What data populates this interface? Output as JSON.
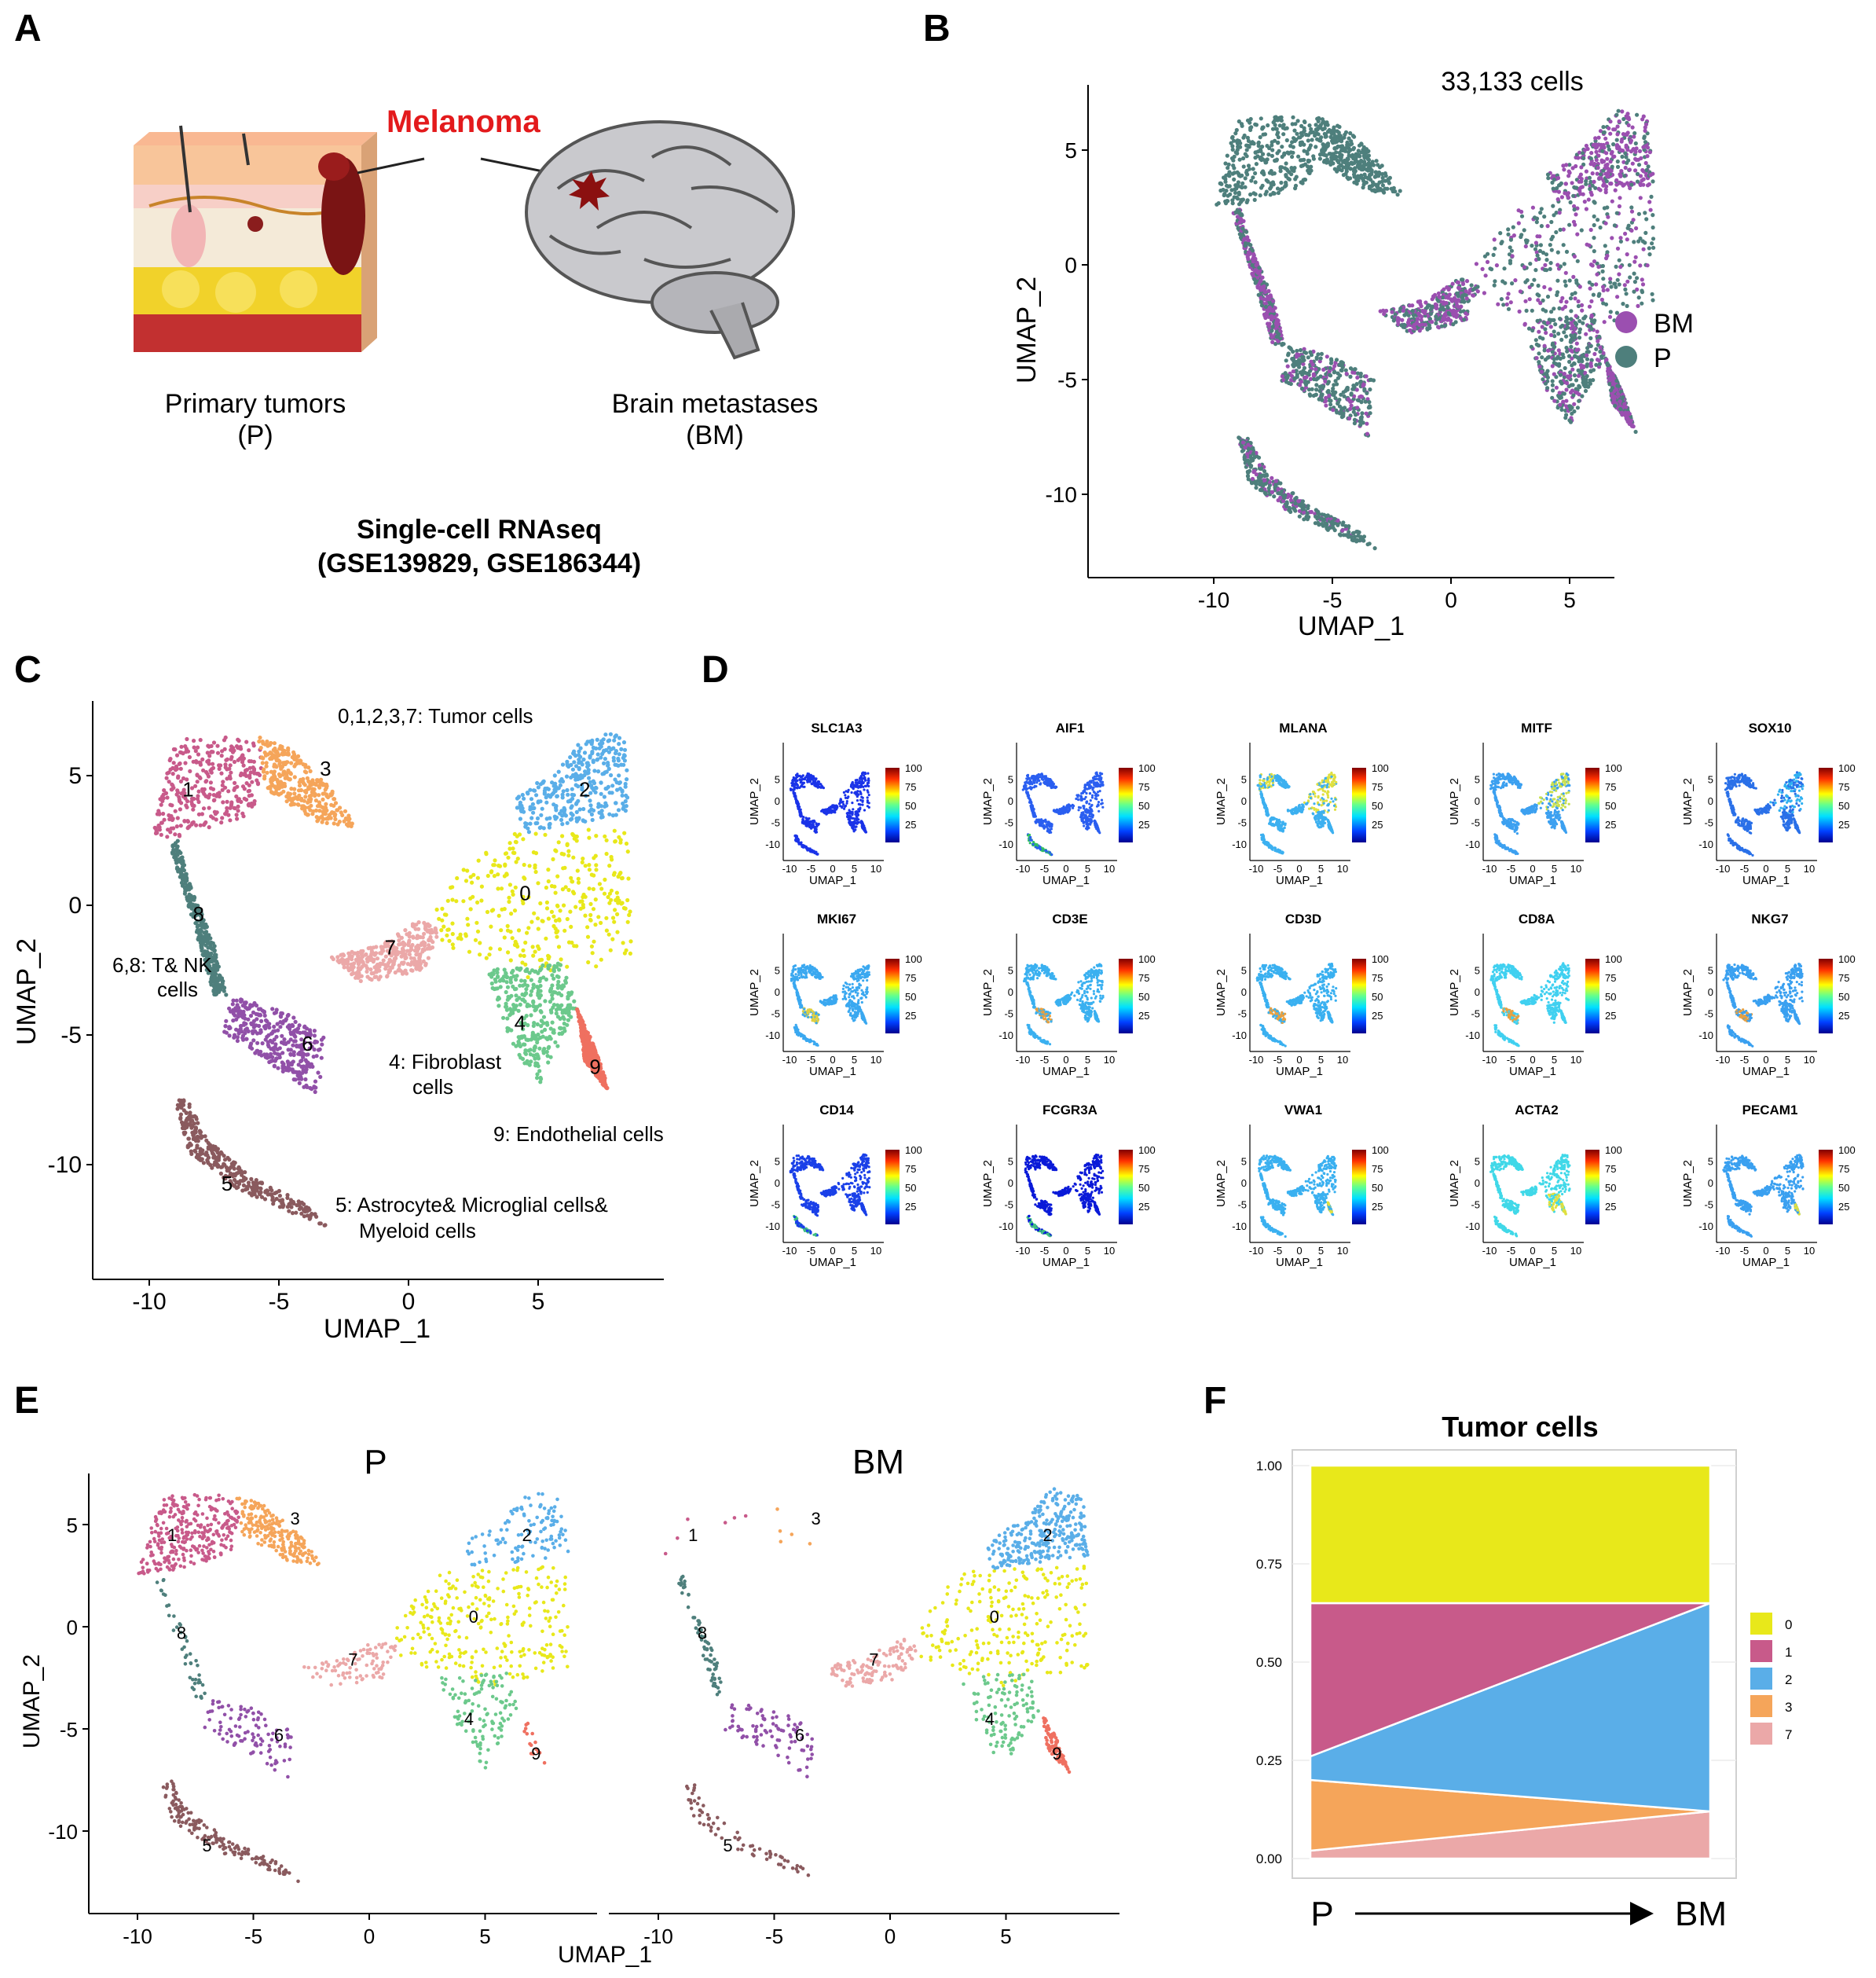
{
  "panels": {
    "A": {
      "label": "A",
      "melanoma": "Melanoma",
      "primary_line1": "Primary tumors",
      "primary_line2": "(P)",
      "brain_line1": "Brain metastases",
      "brain_line2": "(BM)",
      "method_line1": "Single-cell RNAseq",
      "method_line2": "(GSE139829, GSE186344)"
    },
    "B": {
      "label": "B",
      "cell_count": "33,133 cells",
      "xlabel": "UMAP_1",
      "ylabel": "UMAP_2",
      "legend": [
        {
          "label": "BM",
          "color": "#9b4fb0"
        },
        {
          "label": "P",
          "color": "#4e7f7c"
        }
      ]
    },
    "C": {
      "label": "C",
      "xlabel": "UMAP_1",
      "ylabel": "UMAP_2",
      "annot_tumor": "0,1,2,3,7: Tumor cells",
      "annot_tnk_1": "6,8: T& NK",
      "annot_tnk_2": "cells",
      "annot_fib_1": "4: Fibroblast",
      "annot_fib_2": "cells",
      "annot_endo": "9: Endothelial cells",
      "annot_astro_1": "5: Astrocyte& Microglial cells&",
      "annot_astro_2": "Myeloid cells"
    },
    "D": {
      "label": "D",
      "xlabel": "UMAP_1",
      "ylabel": "UMAP_2",
      "colorbar_ticks": [
        "100",
        "75",
        "50",
        "25"
      ],
      "x_ticks": [
        "-10",
        "-5",
        "0",
        "5",
        "10"
      ],
      "y_ticks": [
        "5",
        "0",
        "-5",
        "-10"
      ],
      "genes": [
        "SLC1A3",
        "AIF1",
        "MLANA",
        "MITF",
        "SOX10",
        "MKI67",
        "CD3E",
        "CD3D",
        "CD8A",
        "NKG7",
        "CD14",
        "FCGR3A",
        "VWA1",
        "ACTA2",
        "PECAM1"
      ]
    },
    "E": {
      "label": "E",
      "title_left": "P",
      "title_right": "BM",
      "xlabel": "UMAP_1",
      "ylabel": "UMAP_2"
    },
    "F": {
      "label": "F",
      "title": "Tumor cells",
      "x_start": "P",
      "x_end": "BM"
    }
  },
  "umap_axes": {
    "x_ticks": [
      "-10",
      "-5",
      "0",
      "5"
    ],
    "y_ticks": [
      "5",
      "0",
      "-5",
      "-10"
    ]
  },
  "cluster_colors": {
    "0": "#e8e81a",
    "1": "#c85a8a",
    "2": "#5aaee8",
    "3": "#f5a55a",
    "4": "#6cc98c",
    "5": "#8a5a5e",
    "6": "#9150a8",
    "7": "#eba8a8",
    "8": "#4e7f7c",
    "9": "#ef7060"
  },
  "chart_data": {
    "type": "area",
    "title": "Tumor cells",
    "x": [
      "P",
      "BM"
    ],
    "ylim": [
      0,
      1
    ],
    "y_ticks": [
      "0.00",
      "0.25",
      "0.50",
      "0.75",
      "1.00"
    ],
    "series": [
      {
        "name": "7",
        "color": "#eba8a8",
        "values": [
          0.02,
          0.12
        ]
      },
      {
        "name": "3",
        "color": "#f5a55a",
        "values": [
          0.18,
          0.0
        ]
      },
      {
        "name": "2",
        "color": "#5aaee8",
        "values": [
          0.06,
          0.53
        ]
      },
      {
        "name": "1",
        "color": "#c85a8a",
        "values": [
          0.39,
          0.0
        ]
      },
      {
        "name": "0",
        "color": "#e8e81a",
        "values": [
          0.35,
          0.35
        ]
      }
    ],
    "legend": [
      "0",
      "1",
      "2",
      "3",
      "7"
    ]
  }
}
